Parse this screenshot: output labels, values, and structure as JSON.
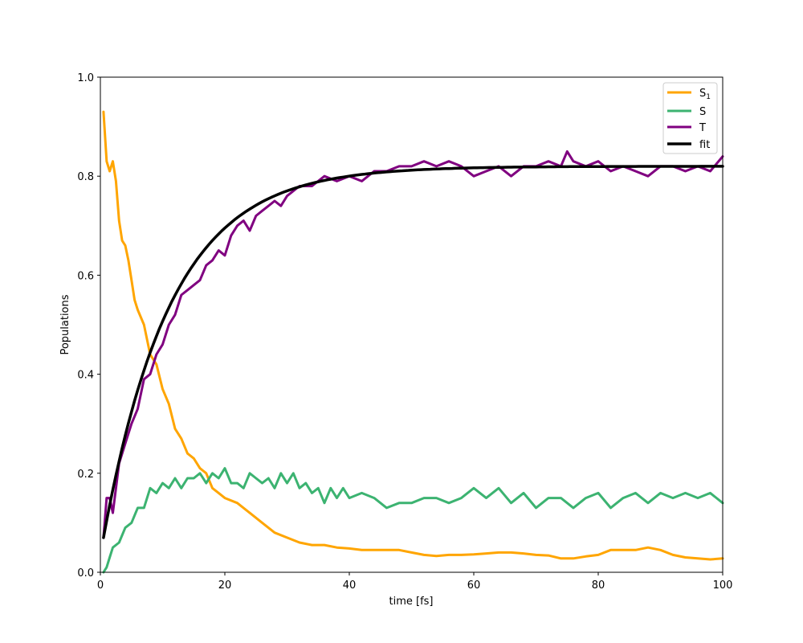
{
  "chart_data": {
    "type": "line",
    "xlabel": "time [fs]",
    "ylabel": "Populations",
    "xlim": [
      0,
      100
    ],
    "ylim": [
      0,
      1.0
    ],
    "xticks": [
      0,
      20,
      40,
      60,
      80,
      100
    ],
    "yticks": [
      0.0,
      0.2,
      0.4,
      0.6,
      0.8,
      1.0
    ],
    "xtick_labels": [
      "0",
      "20",
      "40",
      "60",
      "80",
      "100"
    ],
    "ytick_labels": [
      "0.0",
      "0.2",
      "0.4",
      "0.6",
      "0.8",
      "1.0"
    ],
    "grid": false,
    "legend_position": "top-right",
    "series": [
      {
        "name": "S",
        "name_subscript": "1",
        "color": "#FFA500",
        "x": [
          0.5,
          1,
          1.5,
          2,
          2.5,
          3,
          3.5,
          4,
          4.5,
          5,
          5.5,
          6,
          7,
          8,
          9,
          10,
          11,
          12,
          13,
          14,
          15,
          16,
          17,
          18,
          19,
          20,
          22,
          24,
          26,
          28,
          30,
          32,
          34,
          36,
          38,
          40,
          42,
          44,
          46,
          48,
          50,
          52,
          54,
          56,
          58,
          60,
          62,
          64,
          66,
          68,
          70,
          72,
          74,
          76,
          78,
          80,
          82,
          84,
          86,
          88,
          90,
          92,
          94,
          96,
          98,
          100
        ],
        "y": [
          0.93,
          0.83,
          0.81,
          0.83,
          0.79,
          0.71,
          0.67,
          0.66,
          0.63,
          0.59,
          0.55,
          0.53,
          0.5,
          0.44,
          0.42,
          0.37,
          0.34,
          0.29,
          0.27,
          0.24,
          0.23,
          0.21,
          0.2,
          0.17,
          0.16,
          0.15,
          0.14,
          0.12,
          0.1,
          0.08,
          0.07,
          0.06,
          0.055,
          0.055,
          0.05,
          0.048,
          0.045,
          0.045,
          0.045,
          0.045,
          0.04,
          0.035,
          0.033,
          0.035,
          0.035,
          0.036,
          0.038,
          0.04,
          0.04,
          0.038,
          0.035,
          0.034,
          0.028,
          0.028,
          0.032,
          0.035,
          0.045,
          0.045,
          0.045,
          0.05,
          0.045,
          0.035,
          0.03,
          0.028,
          0.026,
          0.028
        ]
      },
      {
        "name": "S",
        "color": "#3CB371",
        "x": [
          0.5,
          1,
          1.5,
          2,
          3,
          4,
          5,
          6,
          7,
          8,
          9,
          10,
          11,
          12,
          13,
          14,
          15,
          16,
          17,
          18,
          19,
          20,
          21,
          22,
          23,
          24,
          25,
          26,
          27,
          28,
          29,
          30,
          31,
          32,
          33,
          34,
          35,
          36,
          37,
          38,
          39,
          40,
          42,
          44,
          46,
          48,
          50,
          52,
          54,
          56,
          58,
          60,
          62,
          64,
          66,
          68,
          70,
          72,
          74,
          76,
          78,
          80,
          82,
          84,
          86,
          88,
          90,
          92,
          94,
          96,
          98,
          100
        ],
        "y": [
          0.0,
          0.01,
          0.03,
          0.05,
          0.06,
          0.09,
          0.1,
          0.13,
          0.13,
          0.17,
          0.16,
          0.18,
          0.17,
          0.19,
          0.17,
          0.19,
          0.19,
          0.2,
          0.18,
          0.2,
          0.19,
          0.21,
          0.18,
          0.18,
          0.17,
          0.2,
          0.19,
          0.18,
          0.19,
          0.17,
          0.2,
          0.18,
          0.2,
          0.17,
          0.18,
          0.16,
          0.17,
          0.14,
          0.17,
          0.15,
          0.17,
          0.15,
          0.16,
          0.15,
          0.13,
          0.14,
          0.14,
          0.15,
          0.15,
          0.14,
          0.15,
          0.17,
          0.15,
          0.17,
          0.14,
          0.16,
          0.13,
          0.15,
          0.15,
          0.13,
          0.15,
          0.16,
          0.13,
          0.15,
          0.16,
          0.14,
          0.16,
          0.15,
          0.16,
          0.15,
          0.16,
          0.14
        ]
      },
      {
        "name": "T",
        "color": "#800080",
        "x": [
          0.5,
          1,
          1.5,
          2,
          3,
          4,
          5,
          6,
          7,
          8,
          9,
          10,
          11,
          12,
          13,
          14,
          15,
          16,
          17,
          18,
          19,
          20,
          21,
          22,
          23,
          24,
          25,
          26,
          27,
          28,
          29,
          30,
          32,
          34,
          36,
          38,
          40,
          42,
          44,
          46,
          48,
          50,
          52,
          54,
          56,
          58,
          60,
          62,
          64,
          66,
          68,
          70,
          72,
          74,
          75,
          76,
          78,
          80,
          82,
          84,
          86,
          88,
          90,
          92,
          94,
          96,
          98,
          100
        ],
        "y": [
          0.07,
          0.15,
          0.15,
          0.12,
          0.22,
          0.26,
          0.3,
          0.33,
          0.39,
          0.4,
          0.44,
          0.46,
          0.5,
          0.52,
          0.56,
          0.57,
          0.58,
          0.59,
          0.62,
          0.63,
          0.65,
          0.64,
          0.68,
          0.7,
          0.71,
          0.69,
          0.72,
          0.73,
          0.74,
          0.75,
          0.74,
          0.76,
          0.78,
          0.78,
          0.8,
          0.79,
          0.8,
          0.79,
          0.81,
          0.81,
          0.82,
          0.82,
          0.83,
          0.82,
          0.83,
          0.82,
          0.8,
          0.81,
          0.82,
          0.8,
          0.82,
          0.82,
          0.83,
          0.82,
          0.85,
          0.83,
          0.82,
          0.83,
          0.81,
          0.82,
          0.81,
          0.8,
          0.82,
          0.82,
          0.81,
          0.82,
          0.81,
          0.84
        ]
      },
      {
        "name": "fit",
        "color": "#000000",
        "fit_model": {
          "amplitude": 0.82,
          "rate": 0.092,
          "x0": 0.5,
          "y0": 0.07,
          "xmax": 100
        }
      }
    ]
  }
}
